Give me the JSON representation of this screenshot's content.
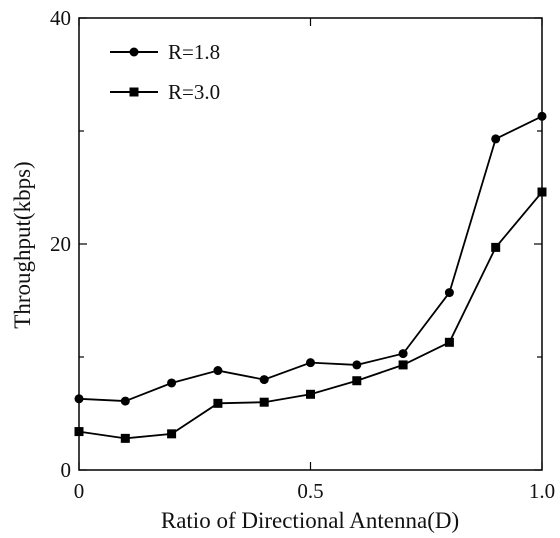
{
  "chart_data": {
    "type": "line",
    "title": "",
    "xlabel": "Ratio of Directional Antenna(D)",
    "ylabel": "Throughput(kbps)",
    "xlim": [
      0,
      1.0
    ],
    "ylim": [
      0,
      40
    ],
    "x_ticks": [
      0,
      0.5,
      1.0
    ],
    "x_tick_labels": [
      "0",
      "0.5",
      "1.0"
    ],
    "y_ticks": [
      0,
      20,
      40
    ],
    "y_tick_labels": [
      "0",
      "20",
      "40"
    ],
    "y_minor_ticks": [
      10,
      30
    ],
    "grid": false,
    "legend_position": "top-left",
    "x": [
      0,
      0.1,
      0.2,
      0.3,
      0.4,
      0.5,
      0.6,
      0.7,
      0.8,
      0.9,
      1.0
    ],
    "series": [
      {
        "name": "R=1.8",
        "marker": "circle",
        "color": "#000000",
        "values": [
          6.3,
          6.1,
          7.7,
          8.8,
          8.0,
          9.5,
          9.3,
          10.3,
          15.7,
          29.3,
          31.3
        ]
      },
      {
        "name": "R=3.0",
        "marker": "square",
        "color": "#000000",
        "values": [
          3.4,
          2.8,
          3.2,
          5.9,
          6.0,
          6.7,
          7.9,
          9.3,
          11.3,
          19.7,
          24.6
        ]
      }
    ]
  }
}
